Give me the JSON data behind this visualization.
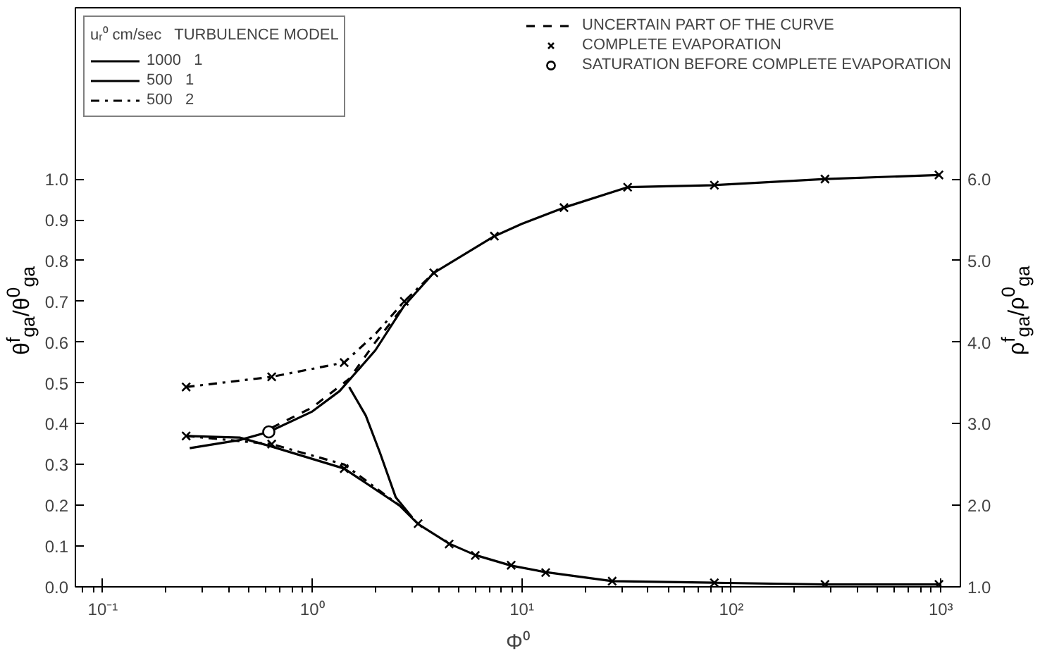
{
  "chart_data": {
    "type": "line",
    "xlabel": "Φ⁰",
    "ylabel": "θ$^{f}$$_{ga}$/θ$^{0}$$_{ga}$",
    "y2label": "ρ$^{f}$$_{ga}$/ρ$^{0}$$_{ga}$",
    "legend_title": "uᵣ⁰ cm/sec   TURBULENCE MODEL",
    "log": "x",
    "grid": false,
    "legend": "top",
    "xlim": [
      0.074,
      1240
    ],
    "ylim": [
      0,
      1.42
    ],
    "y2lim": [
      1.0,
      8.1
    ],
    "xticks": [
      {
        "value": 0.1,
        "label": "10⁻¹"
      },
      {
        "value": 1,
        "label": "10⁰"
      },
      {
        "value": 10,
        "label": "10¹"
      },
      {
        "value": 100,
        "label": "10²"
      },
      {
        "value": 1000,
        "label": "10³"
      }
    ],
    "yticks": [
      {
        "value": 0,
        "label": "0.0"
      },
      0.1,
      0.2,
      0.3,
      0.4,
      0.5,
      0.6,
      0.7,
      0.8,
      0.9,
      {
        "value": 1,
        "label": "1.0"
      }
    ],
    "y2ticks": [
      {
        "value": 1,
        "label": "1.0"
      },
      {
        "value": 2,
        "label": "2.0"
      },
      {
        "value": 3,
        "label": "3.0"
      },
      {
        "value": 4,
        "label": "4.0"
      },
      {
        "value": 5,
        "label": "5.0"
      },
      {
        "value": 6,
        "label": "6.0"
      }
    ],
    "series": [
      {
        "name": "1000   1",
        "color": "#000000",
        "line_style": "solid",
        "x": [
          0.26,
          0.45,
          0.62,
          1.0,
          1.35,
          2.0,
          2.75,
          3.8,
          7.4,
          10,
          15.9,
          32,
          83,
          280,
          980
        ],
        "values": [
          0.34,
          0.36,
          0.38,
          0.43,
          0.48,
          0.58,
          0.69,
          0.77,
          0.86,
          0.89,
          0.93,
          0.98,
          0.985,
          1.0,
          1.01
        ]
      },
      {
        "color": "#000000",
        "line_style": "solid",
        "axis": "y2",
        "x": [
          0.25,
          0.45,
          0.64,
          1.42,
          2.6,
          3.2,
          4.5,
          6,
          8.9,
          13,
          27,
          83,
          280,
          980
        ],
        "values": [
          2.85,
          2.83,
          2.72,
          2.45,
          2.0,
          1.77,
          1.53,
          1.39,
          1.26,
          1.18,
          1.07,
          1.05,
          1.03,
          1.03
        ]
      },
      {
        "name": "500   1",
        "color": "#000000",
        "line_style": "solid",
        "axis": "y2",
        "x": [
          1.5,
          1.8,
          2.1,
          2.5,
          3.0
        ],
        "values": [
          3.45,
          3.1,
          2.65,
          2.1,
          1.85
        ]
      },
      {
        "name": "500   2",
        "color": "#000000",
        "line_style": "dashdot",
        "x": [
          0.25,
          0.64,
          1.42,
          2.0,
          2.75,
          3.8
        ],
        "values": [
          0.49,
          0.515,
          0.55,
          0.62,
          0.7,
          0.77
        ]
      },
      {
        "color": "#000000",
        "line_style": "dashdot",
        "axis": "y2",
        "x": [
          0.25,
          0.64,
          1.42,
          2.6
        ],
        "values": [
          2.85,
          2.75,
          2.5,
          2.0
        ]
      },
      {
        "name": "UNCERTAIN PART OF THE CURVE",
        "color": "#000000",
        "line_style": "dashed",
        "x": [
          0.64,
          1.0,
          1.5,
          2.0,
          2.75
        ],
        "values": [
          0.39,
          0.44,
          0.51,
          0.6,
          0.69
        ]
      },
      {
        "name": "COMPLETE EVAPORATION",
        "type": "scatter",
        "marker": "cross",
        "color": "#000000",
        "x": [
          0.25,
          0.64,
          1.42,
          2.75,
          3.8,
          7.4,
          15.9,
          32,
          83,
          280,
          980,
          0.25,
          0.64,
          1.42,
          3.2,
          4.5,
          6,
          8.9,
          13,
          27,
          83,
          280,
          980
        ],
        "values": [
          0.49,
          0.515,
          0.55,
          0.7,
          0.77,
          0.86,
          0.93,
          0.98,
          0.985,
          1.0,
          1.01,
          0.37,
          0.35,
          0.29,
          0.155,
          0.105,
          0.077,
          0.053,
          0.035,
          0.014,
          0.01,
          0.006,
          0.006
        ]
      },
      {
        "name": "SATURATION BEFORE COMPLETE EVAPORATION",
        "type": "scatter",
        "marker": "circle",
        "color": "#000000",
        "x": [
          0.62
        ],
        "values": [
          0.38
        ]
      }
    ]
  }
}
